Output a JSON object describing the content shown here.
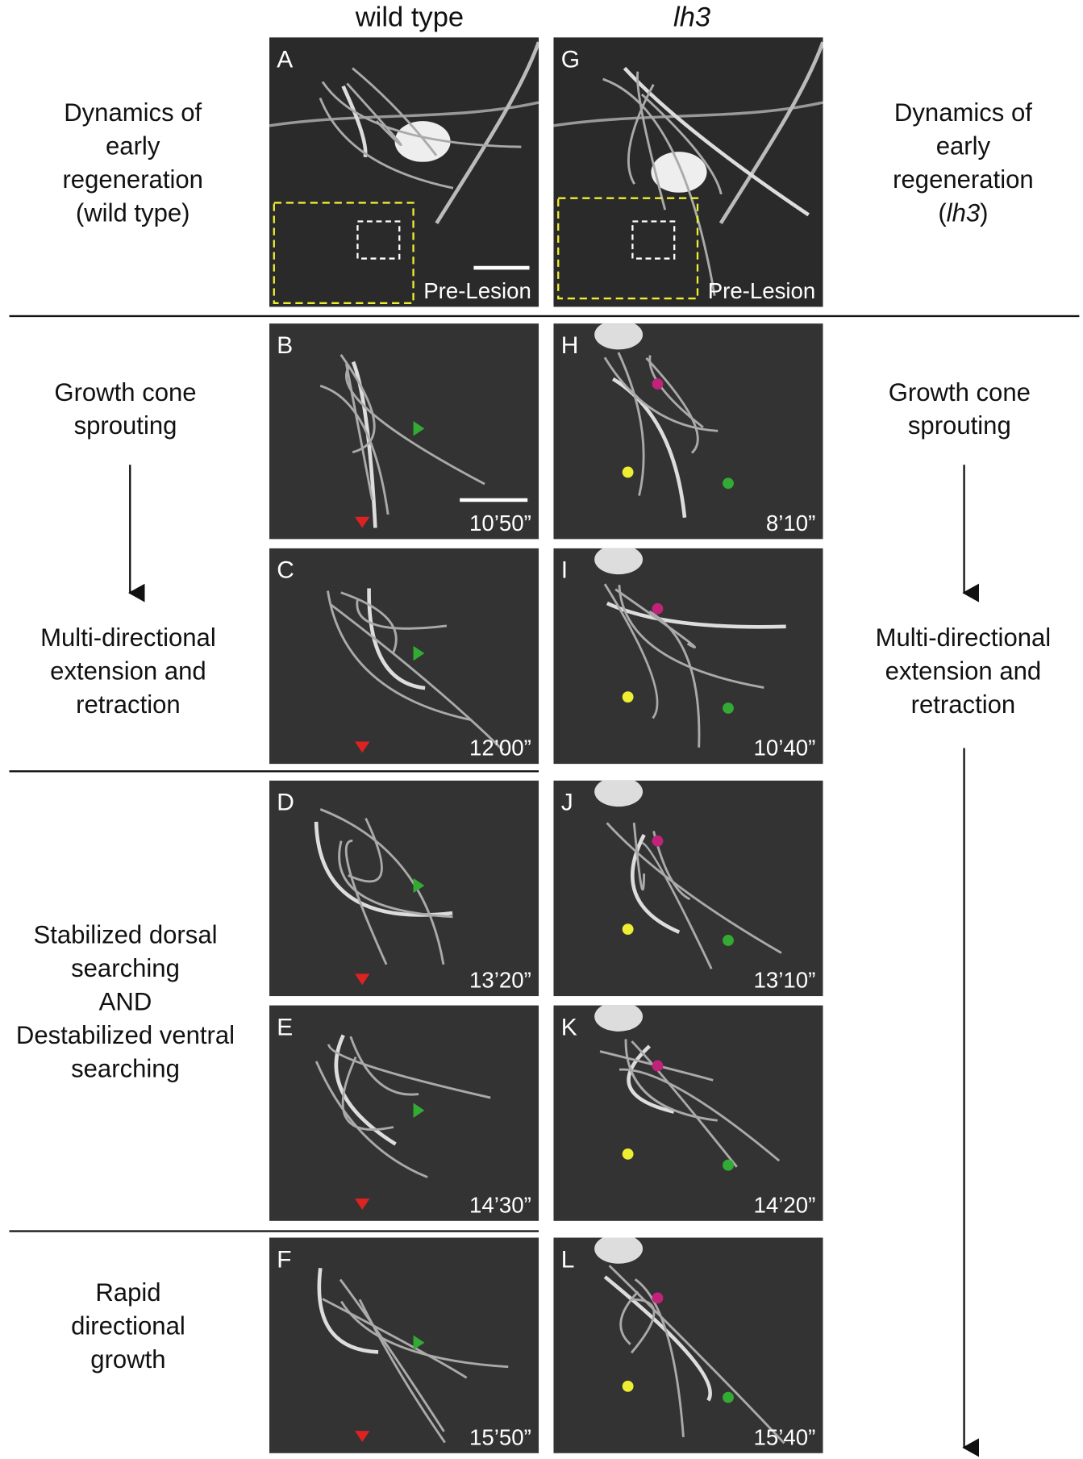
{
  "columns": [
    "wild type",
    "lh3"
  ],
  "left_labels": [
    [
      "Dynamics of",
      "early",
      "regeneration",
      "(wild type)"
    ],
    [
      "Growth cone",
      "sprouting"
    ],
    [
      "Multi-directional",
      "extension and",
      "retraction"
    ],
    [
      "Stabilized dorsal",
      "searching",
      "AND",
      "Destabilized ventral",
      "searching"
    ],
    [
      "Rapid",
      "directional",
      "growth"
    ]
  ],
  "right_labels": [
    [
      "Dynamics of",
      "early",
      "regeneration"
    ],
    [
      "Growth cone",
      "sprouting"
    ],
    [
      "Multi-directional",
      "extension and",
      "retraction"
    ]
  ],
  "right_italic_line": {
    "before": "(",
    "italic": "lh3",
    "after": ")"
  },
  "panels": [
    {
      "label": "A",
      "caption": "Pre-Lesion"
    },
    {
      "label": "B",
      "caption": "10’50”"
    },
    {
      "label": "C",
      "caption": "12’00”"
    },
    {
      "label": "D",
      "caption": "13’20”"
    },
    {
      "label": "E",
      "caption": "14’30”"
    },
    {
      "label": "F",
      "caption": "15’50”"
    },
    {
      "label": "G",
      "caption": "Pre-Lesion"
    },
    {
      "label": "H",
      "caption": "8’10”"
    },
    {
      "label": "I",
      "caption": "10’40”"
    },
    {
      "label": "J",
      "caption": "13’10”"
    },
    {
      "label": "K",
      "caption": "14’20”"
    },
    {
      "label": "L",
      "caption": "15’40”"
    }
  ]
}
